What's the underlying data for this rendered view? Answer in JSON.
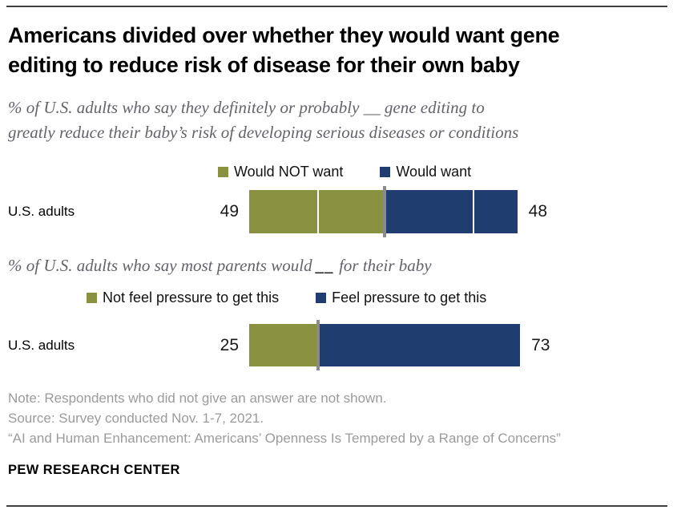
{
  "page": {
    "title_lines": [
      "Americans divided over whether they would want gene",
      "editing to reduce risk of disease for their own baby"
    ],
    "footer": "PEW RESEARCH CENTER"
  },
  "notes": [
    "Note: Respondents who did not give an answer are not shown.",
    "Source: Survey conducted Nov. 1-7, 2021.",
    "“AI and Human Enhancement: Americans’ Openness Is Tempered by a Range of Concerns”"
  ],
  "colors": {
    "green": "#8A9140",
    "blue": "#1F3D6E",
    "divider_gray": "#8B8B8B",
    "subtitle_gray": "#63636B",
    "note_gray": "#9B9B9B"
  },
  "chart_data": [
    {
      "type": "bar",
      "orientation": "horizontal",
      "title_lines": [
        "% of U.S. adults who say they definitely or probably __ gene editing to",
        "greatly reduce their baby’s risk of developing serious diseases or conditions"
      ],
      "categories": [
        "U.S. adults"
      ],
      "series": [
        {
          "name": "Would NOT want",
          "color": "#8A9140",
          "values": [
            49
          ],
          "sub_divider_pct": 50
        },
        {
          "name": "Would want",
          "color": "#1F3D6E",
          "values": [
            48
          ],
          "sub_divider_pct": 66.5
        }
      ],
      "xlim": [
        0,
        100
      ],
      "legend_position": "top",
      "value_labels_shown": true
    },
    {
      "type": "bar",
      "orientation": "horizontal",
      "title": {
        "before_blank": "% of U.S. adults who say most parents would ",
        "blank": "__",
        "after_blank": " for their baby"
      },
      "categories": [
        "U.S. adults"
      ],
      "series": [
        {
          "name": "Not feel pressure to get this",
          "color": "#8A9140",
          "values": [
            25
          ]
        },
        {
          "name": "Feel pressure to get this",
          "color": "#1F3D6E",
          "values": [
            73
          ]
        }
      ],
      "xlim": [
        0,
        100
      ],
      "legend_position": "top",
      "value_labels_shown": true
    }
  ]
}
